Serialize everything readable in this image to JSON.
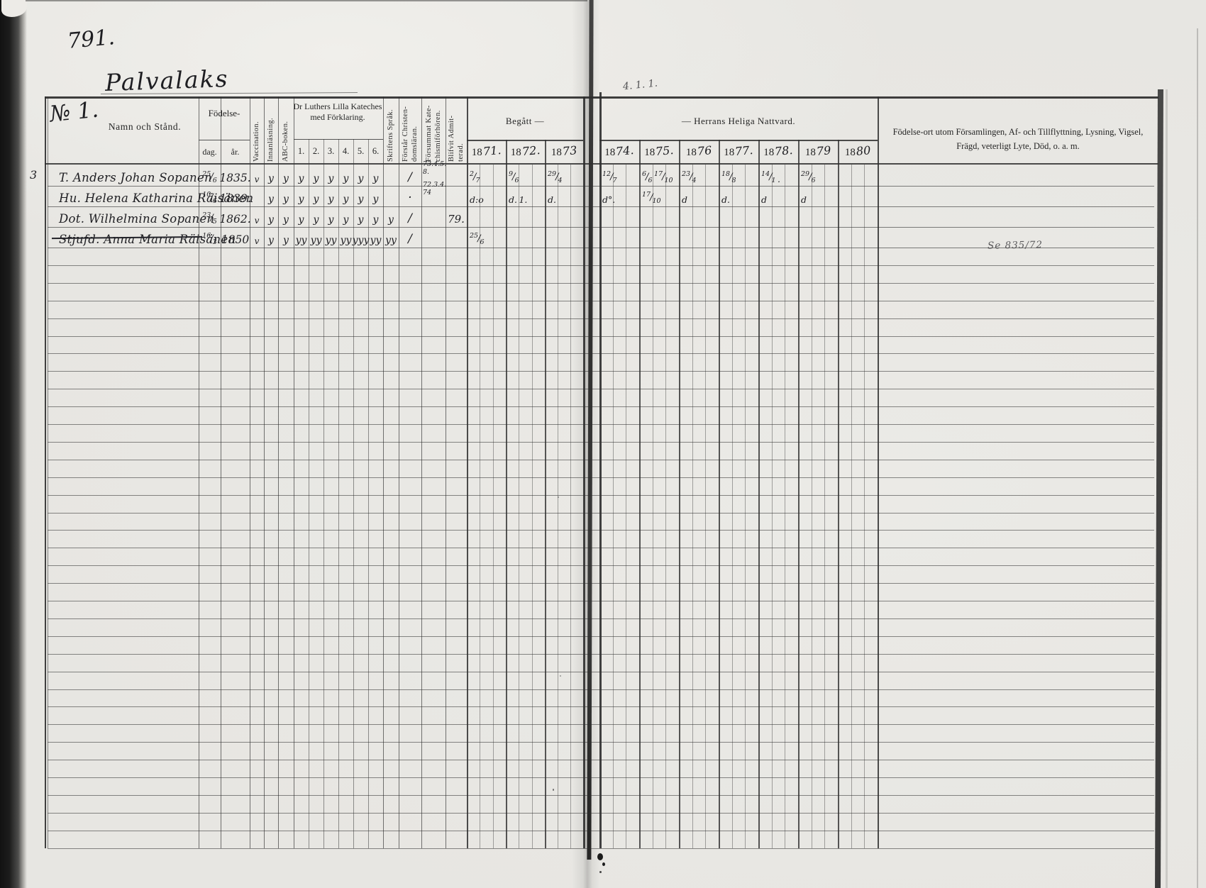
{
  "page": {
    "number": "791.",
    "place": "Palvalaks",
    "gutter_note": "4. 1. 1."
  },
  "header": {
    "no_hand": "№ 1.",
    "name_label": "Namn och Stånd.",
    "birth": {
      "label": "Födelse-",
      "day": "dag.",
      "year": "år."
    },
    "columns_vertical": [
      {
        "id": "vacc",
        "lines": [
          "Vaccination."
        ]
      },
      {
        "id": "innan",
        "lines": [
          "Innanläsning."
        ]
      },
      {
        "id": "abc",
        "lines": [
          "ABC-boken."
        ]
      },
      {
        "id": "sprak",
        "lines": [
          "Skriftens Språk."
        ]
      },
      {
        "id": "forstar",
        "lines": [
          "Förstår Christen-",
          "domsläran."
        ]
      },
      {
        "id": "forsummat",
        "lines": [
          "Försummat Kate-",
          "chismiförhören."
        ]
      },
      {
        "id": "admit",
        "lines": [
          "Blifvit Admit-",
          "terad."
        ]
      }
    ],
    "catechism": {
      "title": "Dr Luthers Lilla Kateches med Förklaring.",
      "numbers": [
        "1.",
        "2.",
        "3.",
        "4.",
        "5.",
        "6."
      ]
    },
    "communion_left": "Begått   —",
    "communion_right": "—    Herrans Heliga Nattvard.",
    "years_left": [
      {
        "printed": "18",
        "hand": "71."
      },
      {
        "printed": "18",
        "hand": "72."
      },
      {
        "printed": "18",
        "hand": "73"
      }
    ],
    "years_right": [
      {
        "printed": "18",
        "hand": "74."
      },
      {
        "printed": "18",
        "hand": "75."
      },
      {
        "printed": "18",
        "hand": "76"
      },
      {
        "printed": "18",
        "hand": "77."
      },
      {
        "printed": "18",
        "hand": "78."
      },
      {
        "printed": "18",
        "hand": "79"
      },
      {
        "printed": "18",
        "hand": "80"
      }
    ],
    "notes": "Födelse-ort utom Församlingen, Af- och Tillflyttning, Lysning, Vigsel, Frägd, veterligt Lyte, Död, o. a. m."
  },
  "entries": [
    {
      "margin": "3",
      "name": "T. Anders Johan Sopanen",
      "strike": false,
      "birth_day": "25/6",
      "birth_year": "1835.",
      "vacc": "v",
      "innan": "y",
      "abc": "y",
      "cat": [
        "y",
        "y",
        "y",
        "y",
        "y",
        "y"
      ],
      "sprak": "",
      "forstar": "/",
      "forsummat": [
        "73.4.5.",
        "8."
      ],
      "admit": "",
      "years": {
        "1871": "2/7",
        "1872": "9/6",
        "1873": "29/4",
        "1874": "12/7",
        "1875": "6/6 17/10",
        "1876": "23/4",
        "1877": "18/8",
        "1878": "14/1 .",
        "1879": "29/6",
        "1880": ""
      },
      "note": ""
    },
    {
      "margin": "",
      "name": "Hu. Helena Katharina Räisänen",
      "strike": false,
      "birth_day": "10/6",
      "birth_year": "1839.",
      "vacc": "",
      "innan": "y",
      "abc": "y",
      "cat": [
        "y",
        "y",
        "y",
        "y",
        "y",
        "y"
      ],
      "sprak": "",
      "forstar": "·",
      "forsummat": [
        "72.3.4.",
        "74"
      ],
      "admit": "",
      "years": {
        "1871": "d:o",
        "1872": "d. 1.",
        "1873": "d.",
        "1874": "d°.",
        "1875": "17/10",
        "1876": "d",
        "1877": "d.",
        "1878": "d",
        "1879": "d",
        "1880": ""
      },
      "note": ""
    },
    {
      "margin": "",
      "name": "Dot. Wilhelmina Sopanen",
      "strike": false,
      "birth_day": "23/5",
      "birth_year": "1862.",
      "vacc": "v",
      "innan": "y",
      "abc": "y",
      "cat": [
        "y",
        "y",
        "y",
        "y",
        "y",
        "y"
      ],
      "sprak": "y",
      "forstar": "/",
      "forsummat": [
        "",
        ""
      ],
      "admit": "79.",
      "years": {},
      "note": ""
    },
    {
      "margin": "",
      "name": "Stjufd. Anna Maria Räisänen",
      "strike": true,
      "birth_day": "16/3",
      "birth_year": "1850",
      "vacc": "v",
      "innan": "y",
      "abc": "y",
      "cat": [
        "yy",
        "yy",
        "yy",
        "yy",
        "yyy",
        "yy"
      ],
      "sprak": "yy",
      "forstar": "/",
      "forsummat": [
        "",
        ""
      ],
      "admit": "",
      "years": {
        "1871": "25/6"
      },
      "note": "Se 835/72"
    }
  ]
}
